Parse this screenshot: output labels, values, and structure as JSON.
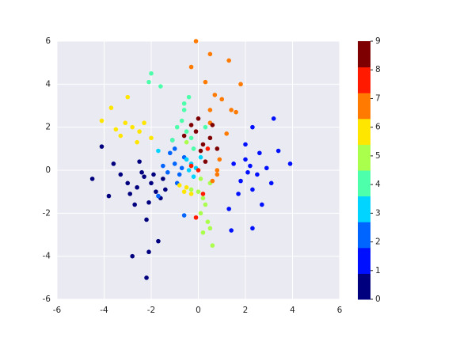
{
  "chart_data": {
    "type": "scatter",
    "xlim": [
      -6,
      6
    ],
    "ylim": [
      -6,
      6
    ],
    "xticks": [
      -6,
      -4,
      -2,
      0,
      2,
      4,
      6
    ],
    "yticks": [
      -6,
      -4,
      -2,
      0,
      2,
      4,
      6
    ],
    "grid": true,
    "colorbar": {
      "lim": [
        0,
        9
      ],
      "ticks": [
        0,
        1,
        2,
        3,
        4,
        5,
        6,
        7,
        8,
        9
      ]
    },
    "series": [
      {
        "color": "#00007f",
        "x": [
          -2,
          -2.3,
          -1.8,
          -2.6,
          -1.5,
          -2.9,
          -3.3,
          -2.1,
          -1.6,
          -3.6,
          -4.1,
          -4.5,
          -2.2,
          -2.1,
          -1.7,
          -2.8,
          -2.4,
          -1.9,
          -2.7,
          -3.0,
          -1.4,
          -2.2,
          -3.8,
          -2.5
        ],
        "y": [
          -0.6,
          -0.3,
          -1,
          -0.8,
          -0.4,
          -1.1,
          -0.2,
          -1.5,
          -1.3,
          0.3,
          1.1,
          -0.4,
          -5,
          -3.8,
          -3.3,
          -4,
          -0.1,
          -0.2,
          -1.6,
          -0.6,
          -0.9,
          -2.3,
          -1.2,
          0.4
        ]
      },
      {
        "color": "#0010ff",
        "x": [
          2.2,
          2.0,
          2.5,
          1.8,
          2.6,
          2.9,
          1.5,
          2.3,
          3.4,
          3.9,
          3.2,
          2.3,
          1.3,
          2.3,
          1.4,
          2.7,
          2.0,
          1.7,
          3.1,
          2.1
        ],
        "y": [
          0.2,
          0.5,
          -0.2,
          -0.5,
          0.8,
          0.1,
          0.3,
          -0.9,
          0.9,
          0.3,
          2.4,
          2,
          -1.8,
          -2.7,
          -2.8,
          -1.6,
          1.2,
          -1.1,
          -0.6,
          -0.1
        ]
      },
      {
        "color": "#0064ff",
        "x": [
          -1,
          -1.2,
          -0.8,
          -1.3,
          -0.6,
          -1.1,
          -0.9,
          -1.5,
          -0.7,
          -1.7,
          -0.6,
          -1.0
        ],
        "y": [
          0.3,
          0.8,
          -0.2,
          -0.1,
          0.6,
          1.4,
          -0.6,
          0.2,
          0.1,
          -1.2,
          -2.1,
          1.0
        ]
      },
      {
        "color": "#00d4ff",
        "x": [
          -0.3,
          -0.5,
          -0.1,
          -0.4,
          0.1,
          -0.2,
          -1.7
        ],
        "y": [
          0.3,
          0.5,
          0.1,
          0.0,
          0.6,
          -0.3,
          0.9
        ]
      },
      {
        "color": "#4dffaa",
        "x": [
          -0.5,
          -0.7,
          -0.3,
          -0.6,
          -0.4,
          -0.9,
          -0.2,
          -2.1,
          -2,
          -1.6,
          -0.6,
          0.3,
          -1.1
        ],
        "y": [
          1.8,
          2.3,
          1.5,
          2.8,
          3.4,
          2.0,
          1.0,
          4.1,
          4.5,
          3.9,
          3.1,
          2.0,
          1.4
        ]
      },
      {
        "color": "#aaff4d",
        "x": [
          0.2,
          0.0,
          0.3,
          0.1,
          0.4,
          0.2,
          0.6,
          0.5,
          -0.3,
          0.5,
          -0.5,
          0.1
        ],
        "y": [
          -1.3,
          -1.0,
          -1.6,
          -2.0,
          -2.4,
          -2.9,
          -3.5,
          -2.7,
          -0.9,
          -0.6,
          1.3,
          -0.4
        ]
      },
      {
        "color": "#ffe600",
        "x": [
          -2.8,
          -3.1,
          -2.5,
          -3.3,
          -2.3,
          -3.0,
          -3.7,
          -4.1,
          -2.6,
          -3.5,
          -0.5,
          -0.8,
          -0.3,
          -0.6,
          -2.0
        ],
        "y": [
          2,
          2.2,
          1.8,
          1.6,
          2.2,
          3.4,
          2.9,
          2.3,
          1.3,
          1.9,
          -0.8,
          -0.7,
          -1.1,
          -1.0,
          1.5
        ]
      },
      {
        "color": "#ff7a00",
        "x": [
          0.7,
          0.3,
          1.0,
          0.5,
          -0.3,
          0.5,
          -0.1,
          1.3,
          1.8,
          1.4,
          0.8,
          0.6,
          0.9,
          1.2,
          0.5,
          0.8,
          1.6
        ],
        "y": [
          3.5,
          4.1,
          3.3,
          2.8,
          4.8,
          5.4,
          6,
          5.1,
          4.0,
          2.8,
          0.0,
          -0.5,
          0.5,
          1.7,
          2.2,
          -0.2,
          2.7
        ]
      },
      {
        "color": "#ff1a00",
        "x": [
          -0.1,
          0.0,
          -0.3,
          0.2,
          0.4
        ],
        "y": [
          -2.2,
          0.0,
          0.2,
          -1.1,
          1.0
        ]
      },
      {
        "color": "#7f0000",
        "x": [
          0.2,
          -0.1,
          0.5,
          -0.3,
          0.3,
          0.8,
          -0.6,
          0.0,
          0.6,
          0.1
        ],
        "y": [
          1.2,
          1.8,
          1.5,
          2.1,
          0.4,
          1.0,
          1.6,
          2.4,
          2.1,
          0.9
        ]
      }
    ]
  }
}
